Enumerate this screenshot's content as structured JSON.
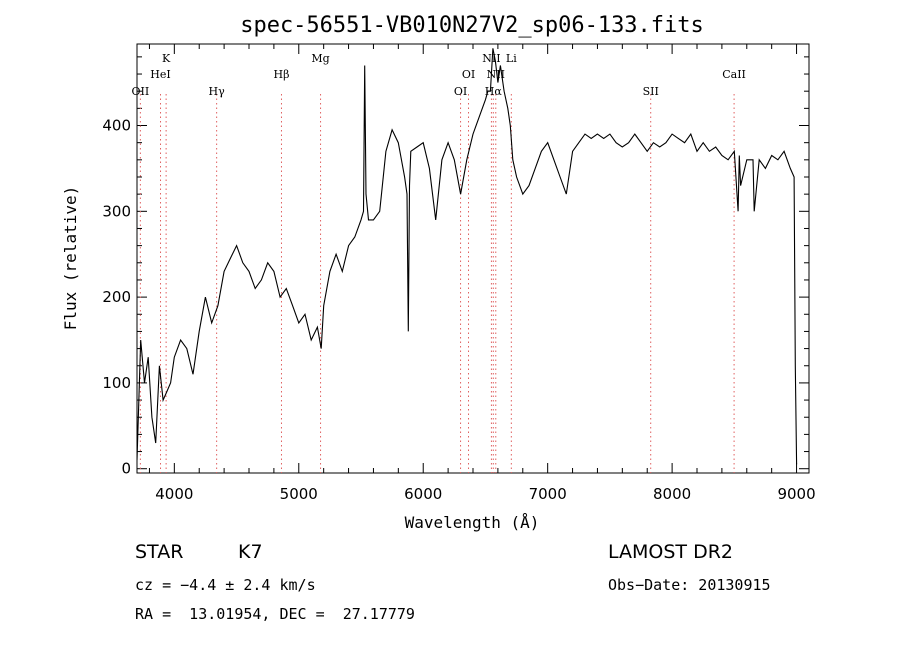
{
  "chart_data": {
    "type": "line",
    "title": "spec-56551-VB010N27V2_sp06-133.fits",
    "xlabel": "Wavelength (Å)",
    "ylabel": "Flux (relative)",
    "xlim": [
      3700,
      9100
    ],
    "ylim": [
      -5,
      495
    ],
    "xticks": [
      4000,
      5000,
      6000,
      7000,
      8000,
      9000
    ],
    "yticks": [
      0,
      100,
      200,
      300,
      400
    ],
    "grid": false,
    "series": [
      {
        "x": [
          3700,
          3730,
          3760,
          3790,
          3820,
          3850,
          3880,
          3910,
          3940,
          3970,
          4000,
          4050,
          4100,
          4150,
          4200,
          4250,
          4300,
          4350,
          4400,
          4450,
          4500,
          4550,
          4600,
          4650,
          4700,
          4750,
          4800,
          4850,
          4900,
          4950,
          5000,
          5050,
          5100,
          5150,
          5180,
          5200,
          5250,
          5300,
          5350,
          5400,
          5450,
          5500,
          5520,
          5530,
          5540,
          5560,
          5600,
          5650,
          5700,
          5750,
          5800,
          5850,
          5870,
          5880,
          5890,
          5900,
          5950,
          6000,
          6050,
          6100,
          6150,
          6200,
          6250,
          6300,
          6350,
          6400,
          6450,
          6500,
          6520,
          6540,
          6560,
          6580,
          6600,
          6620,
          6650,
          6680,
          6700,
          6720,
          6750,
          6800,
          6850,
          6900,
          6950,
          7000,
          7050,
          7100,
          7150,
          7200,
          7250,
          7300,
          7350,
          7400,
          7450,
          7500,
          7550,
          7600,
          7650,
          7700,
          7750,
          7800,
          7850,
          7900,
          7950,
          8000,
          8050,
          8100,
          8150,
          8200,
          8250,
          8300,
          8350,
          8400,
          8450,
          8500,
          8530,
          8540,
          8550,
          8600,
          8650,
          8660,
          8700,
          8750,
          8800,
          8850,
          8900,
          8950,
          8980,
          8990,
          9000
        ],
        "y": [
          10,
          150,
          100,
          130,
          60,
          30,
          120,
          80,
          90,
          100,
          130,
          150,
          140,
          110,
          160,
          200,
          170,
          190,
          230,
          245,
          260,
          240,
          230,
          210,
          220,
          240,
          230,
          200,
          210,
          190,
          170,
          180,
          150,
          165,
          140,
          190,
          230,
          250,
          230,
          260,
          270,
          290,
          300,
          470,
          320,
          290,
          290,
          300,
          370,
          395,
          380,
          340,
          320,
          160,
          330,
          370,
          375,
          380,
          350,
          290,
          360,
          380,
          360,
          320,
          360,
          390,
          410,
          430,
          440,
          440,
          490,
          475,
          450,
          470,
          440,
          420,
          400,
          360,
          340,
          320,
          330,
          350,
          370,
          380,
          360,
          340,
          320,
          370,
          380,
          390,
          385,
          390,
          385,
          390,
          380,
          375,
          380,
          390,
          380,
          370,
          380,
          375,
          380,
          390,
          385,
          380,
          390,
          370,
          380,
          370,
          375,
          365,
          360,
          370,
          300,
          365,
          330,
          360,
          360,
          300,
          360,
          350,
          365,
          360,
          370,
          350,
          340,
          120,
          5
        ]
      }
    ],
    "spectral_lines": [
      {
        "name": "OII",
        "wavelength": 3727
      },
      {
        "name": "K",
        "wavelength": 3934
      },
      {
        "name": "HeI",
        "wavelength": 3889
      },
      {
        "name": "Hγ",
        "wavelength": 4340
      },
      {
        "name": "Hβ",
        "wavelength": 4861
      },
      {
        "name": "Mg",
        "wavelength": 5175
      },
      {
        "name": "OI",
        "wavelength": 6300
      },
      {
        "name": "OI",
        "wavelength": 6364
      },
      {
        "name": "NII",
        "wavelength": 6548
      },
      {
        "name": "NII",
        "wavelength": 6583
      },
      {
        "name": "Hα",
        "wavelength": 6563
      },
      {
        "name": "Li",
        "wavelength": 6708
      },
      {
        "name": "SII",
        "wavelength": 7828
      },
      {
        "name": "CaII",
        "wavelength": 8498
      }
    ],
    "line_color": "#e06060"
  },
  "info": {
    "object_class": "STAR",
    "subclass": "K7",
    "survey": "LAMOST DR2",
    "cz": "cz = −4.4 ± 2.4 km/s",
    "obs_date": "Obs−Date: 20130915",
    "coords": "RA =  13.01954, DEC =  27.17779"
  }
}
